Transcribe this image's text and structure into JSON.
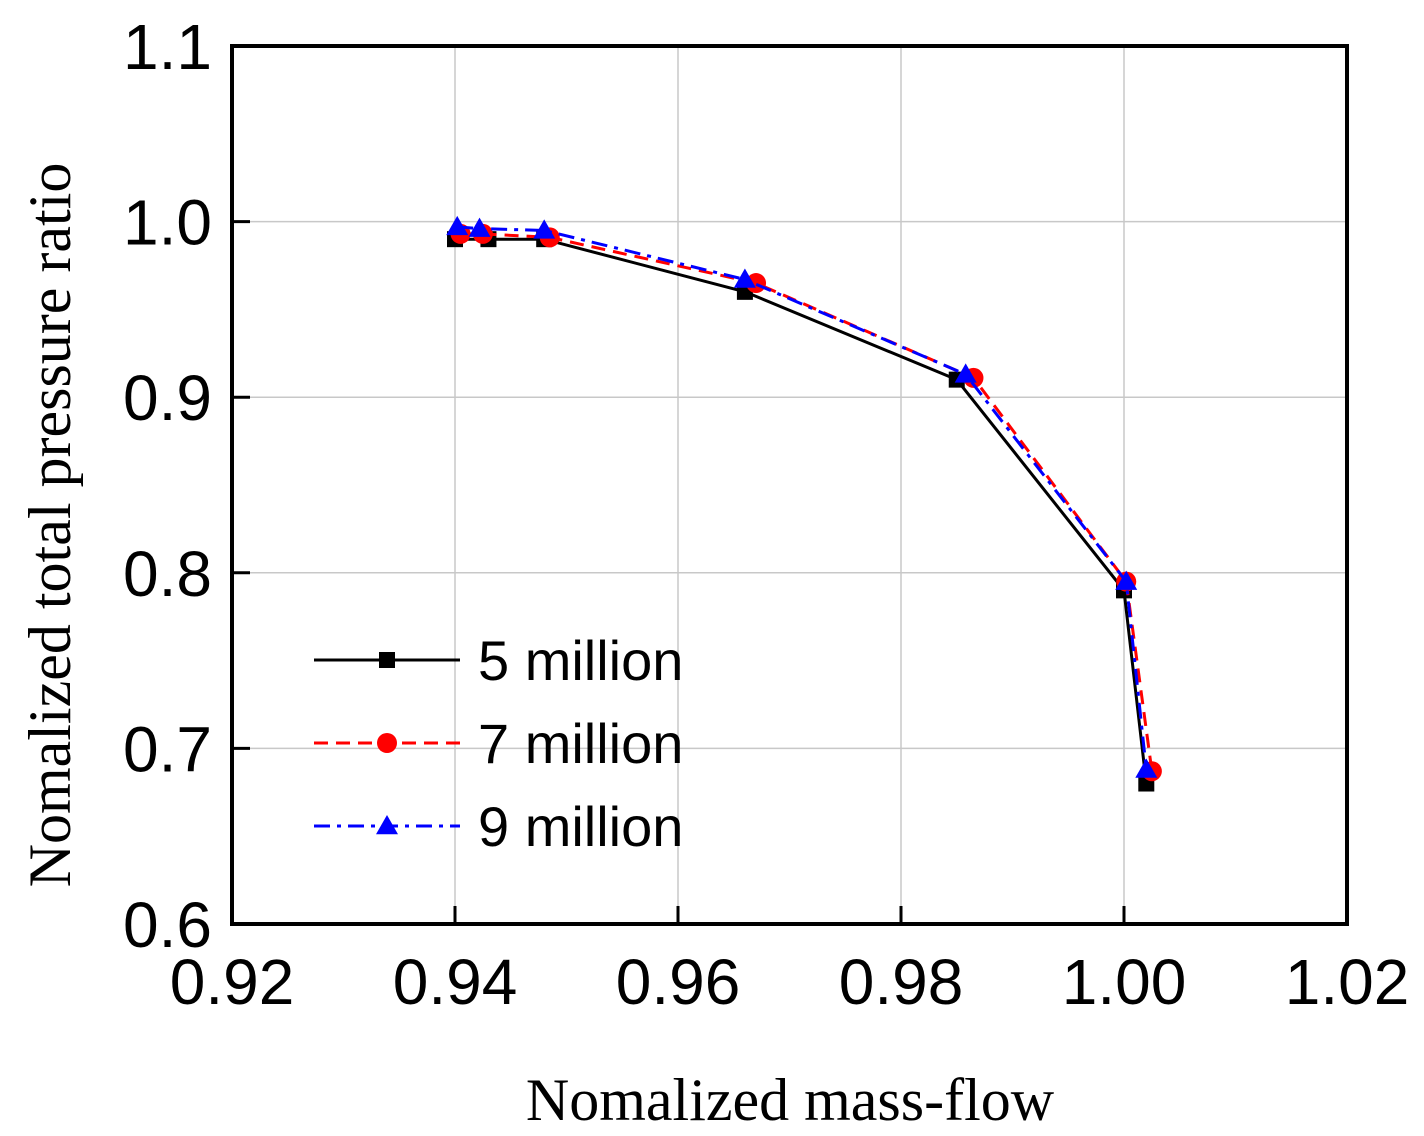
{
  "chart_data": {
    "type": "line",
    "xlabel": "Nomalized mass-flow",
    "ylabel": "Nomalized total pressure ratio",
    "xlim": [
      0.92,
      1.02
    ],
    "ylim": [
      0.6,
      1.1
    ],
    "x_ticks": [
      0.92,
      0.94,
      0.96,
      0.98,
      1.0,
      1.02
    ],
    "x_tick_labels": [
      "0.92",
      "0.94",
      "0.96",
      "0.98",
      "1.00",
      "1.02"
    ],
    "y_ticks": [
      0.6,
      0.7,
      0.8,
      0.9,
      1.0,
      1.1
    ],
    "y_tick_labels": [
      "0.6",
      "0.7",
      "0.8",
      "0.9",
      "1.0",
      "1.1"
    ],
    "grid": true,
    "legend_position": "lower-left",
    "series": [
      {
        "name": "5 million",
        "color": "#000000",
        "dash": "solid",
        "marker": "square",
        "x": [
          0.94,
          0.943,
          0.948,
          0.966,
          0.985,
          1.0,
          1.002
        ],
        "y": [
          0.99,
          0.99,
          0.99,
          0.96,
          0.91,
          0.79,
          0.68
        ]
      },
      {
        "name": "7 million",
        "color": "#ff0000",
        "dash": "dashed",
        "marker": "circle",
        "x": [
          0.9405,
          0.9425,
          0.9485,
          0.967,
          0.9865,
          1.0002,
          1.0025
        ],
        "y": [
          0.993,
          0.993,
          0.991,
          0.965,
          0.911,
          0.795,
          0.687
        ]
      },
      {
        "name": "9 million",
        "color": "#0000ff",
        "dash": "dashdot",
        "marker": "triangle",
        "x": [
          0.9402,
          0.9422,
          0.948,
          0.966,
          0.9858,
          1.0002,
          1.002
        ],
        "y": [
          0.997,
          0.996,
          0.995,
          0.967,
          0.913,
          0.795,
          0.688
        ]
      }
    ]
  }
}
